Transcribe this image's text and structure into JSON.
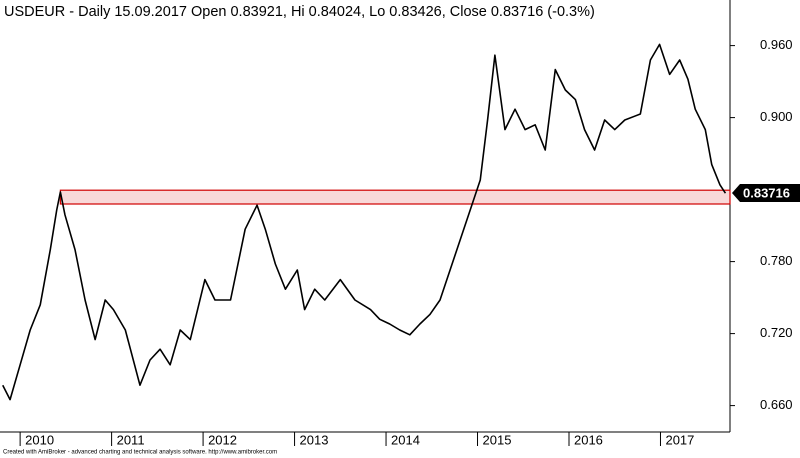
{
  "chart_data": {
    "type": "line",
    "title": "USDEUR - Daily 15.09.2017 Open 0.83921, Hi 0.84024, Lo 0.83426, Close 0.83716 (-0.3%)",
    "footer": "Created with AmiBroker - advanced charting and technical analysis software. http://www.amibroker.com",
    "x": [
      2009.81,
      2009.89,
      2010.0,
      2010.11,
      2010.22,
      2010.33,
      2010.4,
      2010.44,
      2010.49,
      2010.6,
      2010.71,
      2010.82,
      2010.93,
      2011.02,
      2011.15,
      2011.31,
      2011.42,
      2011.53,
      2011.64,
      2011.75,
      2011.86,
      2012.02,
      2012.13,
      2012.3,
      2012.46,
      2012.59,
      2012.68,
      2012.79,
      2012.9,
      2013.03,
      2013.11,
      2013.22,
      2013.33,
      2013.5,
      2013.66,
      2013.83,
      2013.93,
      2014.04,
      2014.15,
      2014.26,
      2014.37,
      2014.48,
      2014.59,
      2014.7,
      2014.81,
      2014.92,
      2015.03,
      2015.11,
      2015.19,
      2015.3,
      2015.41,
      2015.52,
      2015.63,
      2015.74,
      2015.85,
      2015.96,
      2016.07,
      2016.17,
      2016.28,
      2016.39,
      2016.5,
      2016.61,
      2016.78,
      2016.89,
      2016.99,
      2017.1,
      2017.21,
      2017.3,
      2017.38,
      2017.49,
      2017.56,
      2017.65,
      2017.71
    ],
    "values": [
      0.677,
      0.665,
      0.694,
      0.723,
      0.744,
      0.79,
      0.823,
      0.838,
      0.819,
      0.79,
      0.748,
      0.715,
      0.748,
      0.74,
      0.723,
      0.677,
      0.698,
      0.707,
      0.694,
      0.723,
      0.715,
      0.765,
      0.748,
      0.748,
      0.807,
      0.827,
      0.807,
      0.778,
      0.757,
      0.773,
      0.74,
      0.757,
      0.748,
      0.765,
      0.748,
      0.74,
      0.732,
      0.728,
      0.723,
      0.719,
      0.728,
      0.736,
      0.748,
      0.773,
      0.798,
      0.823,
      0.848,
      0.898,
      0.952,
      0.89,
      0.907,
      0.89,
      0.894,
      0.873,
      0.94,
      0.923,
      0.915,
      0.89,
      0.873,
      0.898,
      0.89,
      0.898,
      0.903,
      0.948,
      0.961,
      0.936,
      0.948,
      0.932,
      0.907,
      0.89,
      0.861,
      0.844,
      0.837
    ],
    "color": "#000000",
    "xlim": [
      2009.78,
      2017.76
    ],
    "ylim": [
      0.638,
      0.998
    ],
    "xticks": [
      2010,
      2011,
      2012,
      2013,
      2014,
      2015,
      2016,
      2017
    ],
    "yticks": [
      {
        "value": 0.66,
        "label": "0.660"
      },
      {
        "value": 0.72,
        "label": "0.720"
      },
      {
        "value": 0.78,
        "label": "0.780"
      },
      {
        "value": 0.9,
        "label": "0.900"
      },
      {
        "value": 0.96,
        "label": "0.960"
      }
    ],
    "zone": {
      "from": 2010.44,
      "low": 0.828,
      "high": 0.8395,
      "color": "#d00000"
    },
    "last_value": 0.83716
  }
}
